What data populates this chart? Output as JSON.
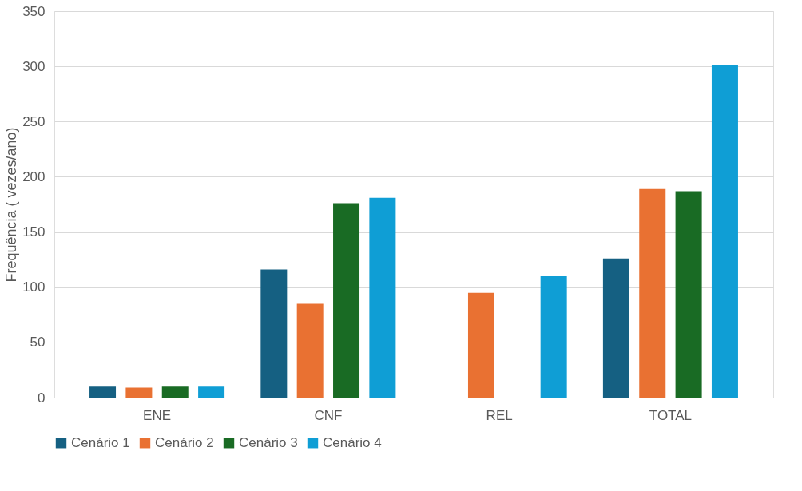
{
  "chart_data": {
    "type": "bar",
    "ylabel": "Frequência ( vezes/ano)",
    "categories": [
      "ENE",
      "CNF",
      "REL",
      "TOTAL"
    ],
    "series": [
      {
        "name": "Cenário 1",
        "color": "#156082",
        "values": [
          10,
          116,
          0,
          126
        ]
      },
      {
        "name": "Cenário 2",
        "color": "#e97132",
        "values": [
          9,
          85,
          95,
          189
        ]
      },
      {
        "name": "Cenário 3",
        "color": "#196b24",
        "values": [
          10,
          176,
          0,
          187
        ]
      },
      {
        "name": "Cenário 4",
        "color": "#0f9ed5",
        "values": [
          10,
          181,
          110,
          301
        ]
      }
    ],
    "ylim": [
      0,
      350
    ],
    "yticks": [
      0,
      50,
      100,
      150,
      200,
      250,
      300,
      350
    ],
    "grid": "y",
    "legend": "bottom"
  }
}
